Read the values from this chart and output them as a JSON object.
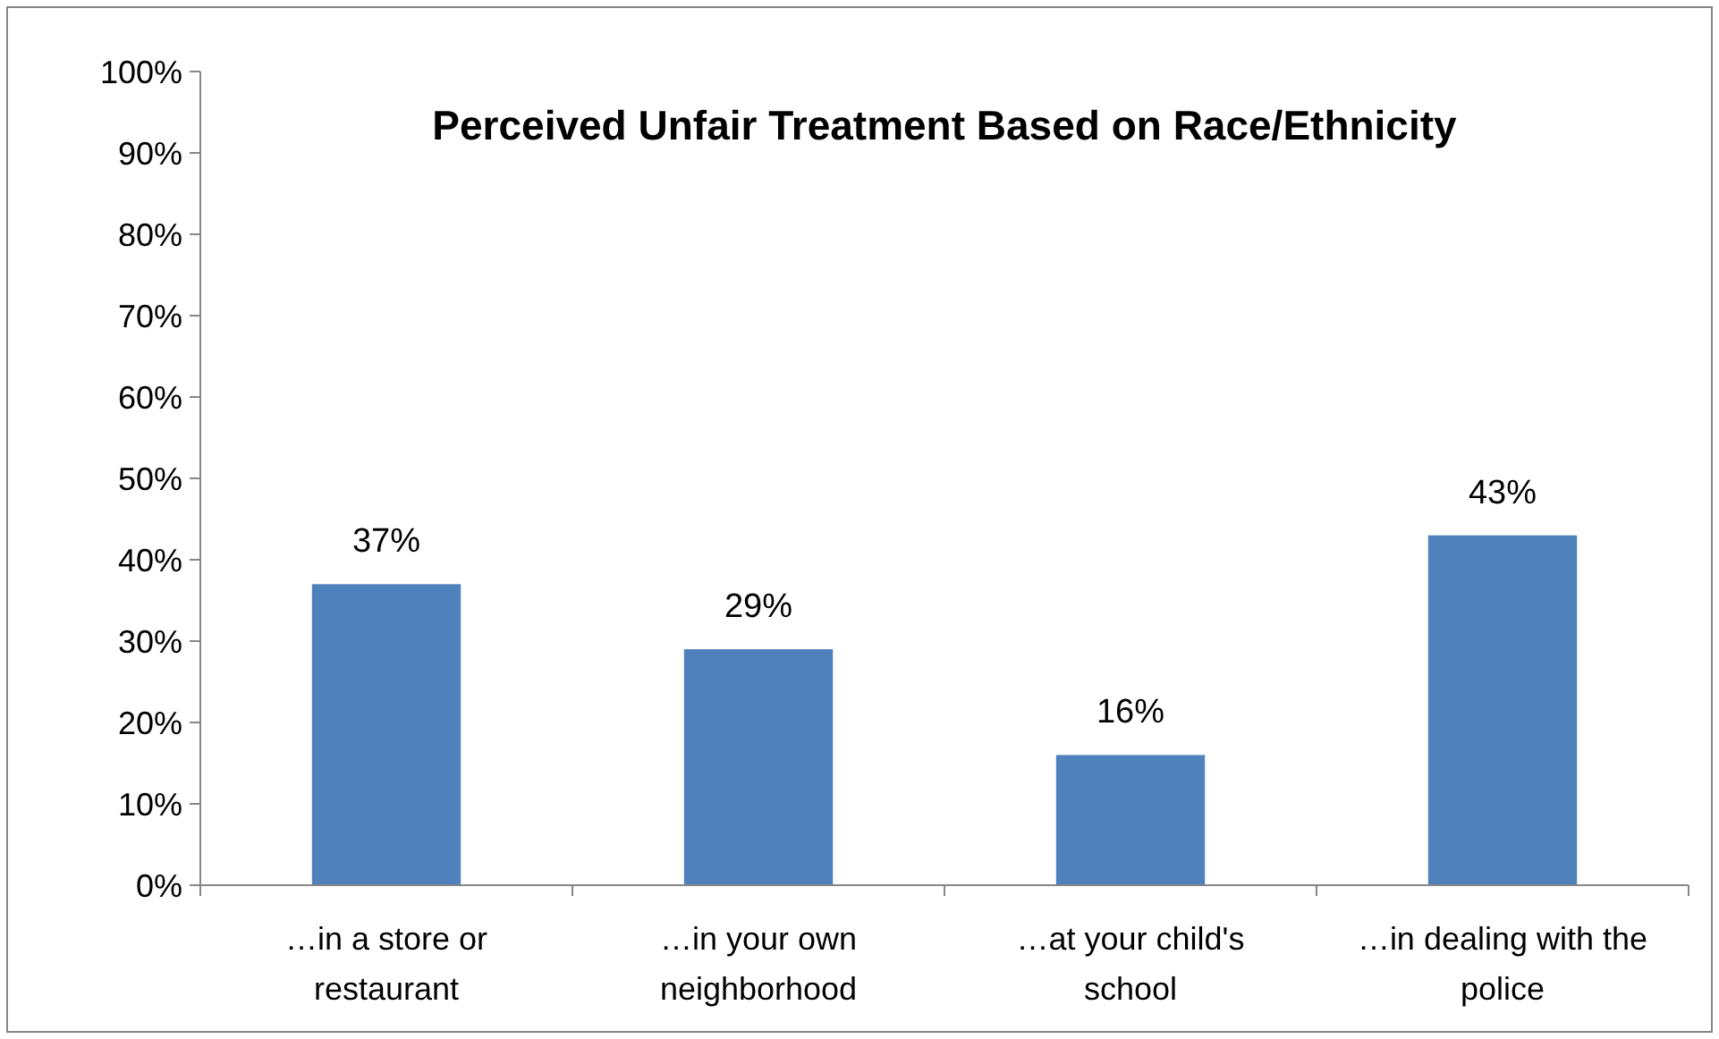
{
  "chart_data": {
    "type": "bar",
    "title": "Perceived Unfair Treatment Based on Race/Ethnicity",
    "categories": [
      "…in a store or restaurant",
      "…in your own neighborhood",
      "…at your child's school",
      "…in dealing with the police"
    ],
    "values": [
      37,
      29,
      16,
      43
    ],
    "color": "#4f81bd",
    "value_labels": [
      "37%",
      "29%",
      "16%",
      "43%"
    ],
    "ylim": [
      0,
      100
    ],
    "yticks": [
      {
        "value": 0,
        "label": "0%"
      },
      {
        "value": 10,
        "label": "10%"
      },
      {
        "value": 20,
        "label": "20%"
      },
      {
        "value": 30,
        "label": "30%"
      },
      {
        "value": 40,
        "label": "40%"
      },
      {
        "value": 50,
        "label": "50%"
      },
      {
        "value": 60,
        "label": "60%"
      },
      {
        "value": 70,
        "label": "70%"
      },
      {
        "value": 80,
        "label": "80%"
      },
      {
        "value": 90,
        "label": "90%"
      },
      {
        "value": 100,
        "label": "100%"
      }
    ],
    "grid": false
  }
}
